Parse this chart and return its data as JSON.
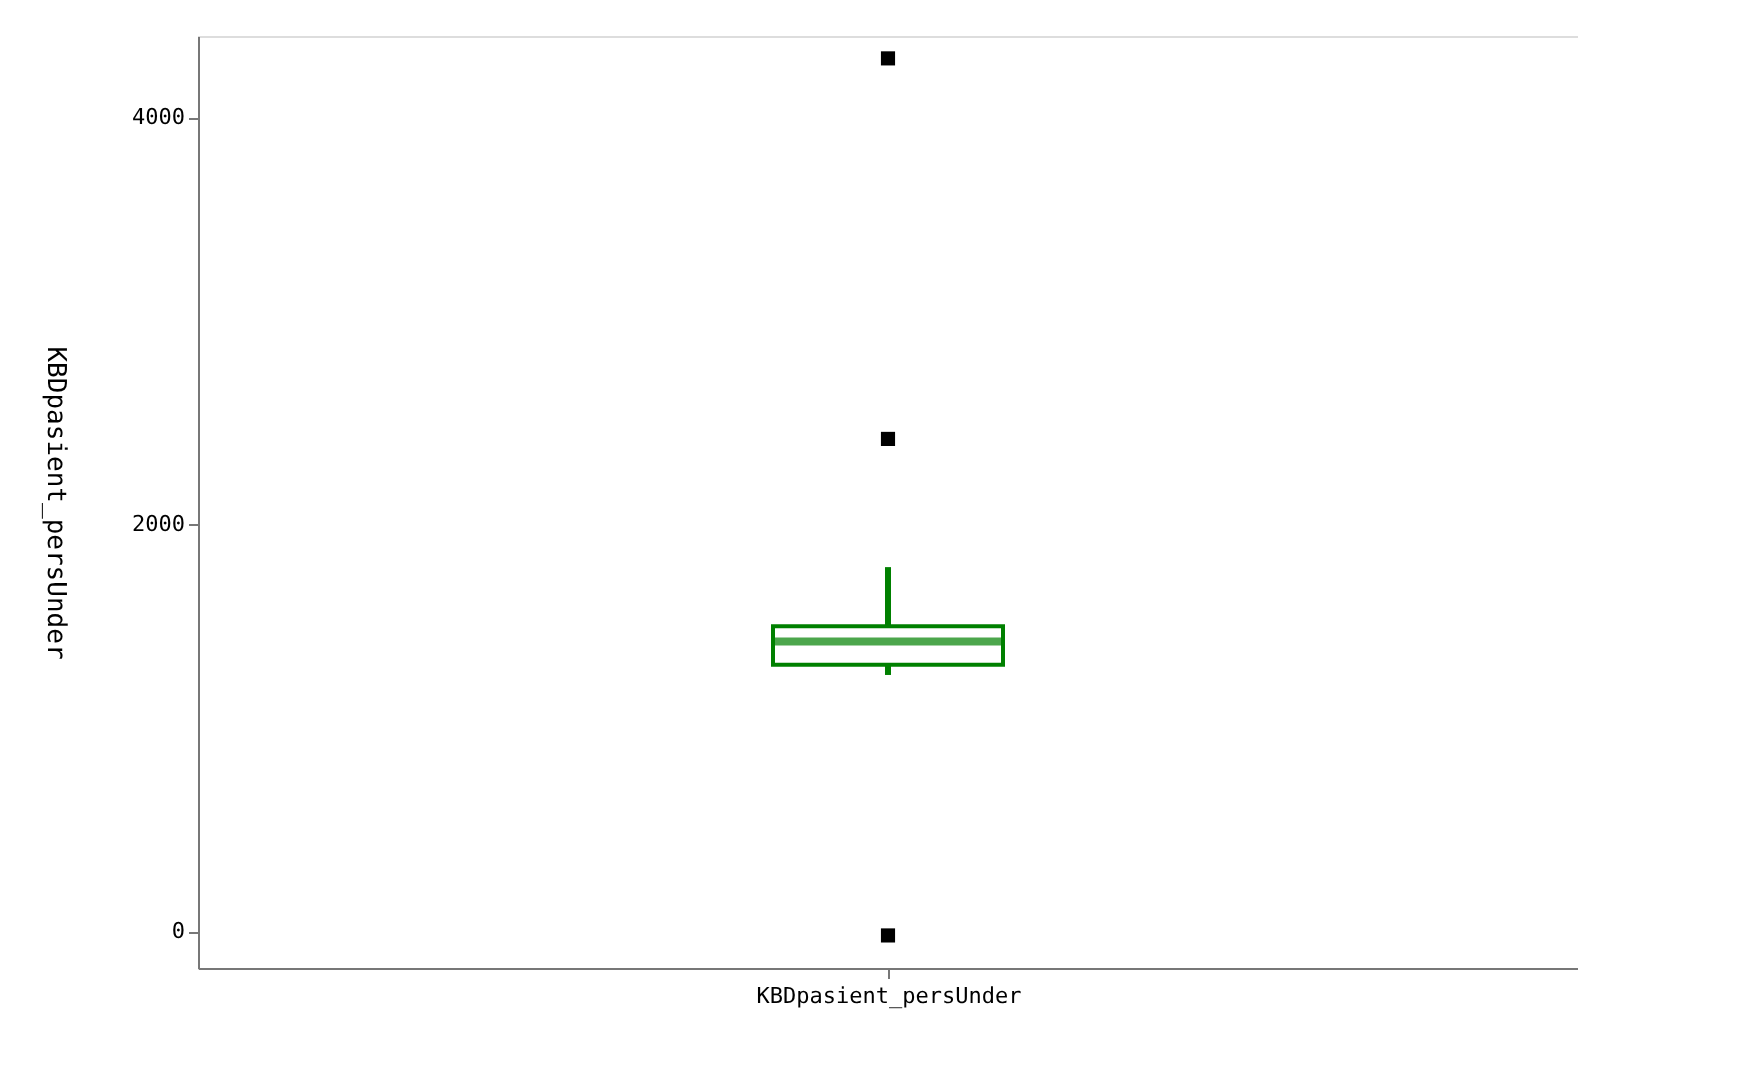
{
  "chart_data": {
    "type": "box",
    "xlabel": "KBDpasient_persUnder",
    "ylabel": "KBDpasient_persUnder",
    "categories": [
      null
    ],
    "boxes": [
      {
        "low": 1260,
        "q1": 1310,
        "median": 1425,
        "q3": 1500,
        "high": 1790,
        "outliers": [
          4290,
          2420,
          -20
        ]
      }
    ],
    "color": "#008000",
    "ylim": [
      -180,
      4400
    ],
    "yticks": [
      0,
      2000,
      4000
    ],
    "grid": false
  }
}
